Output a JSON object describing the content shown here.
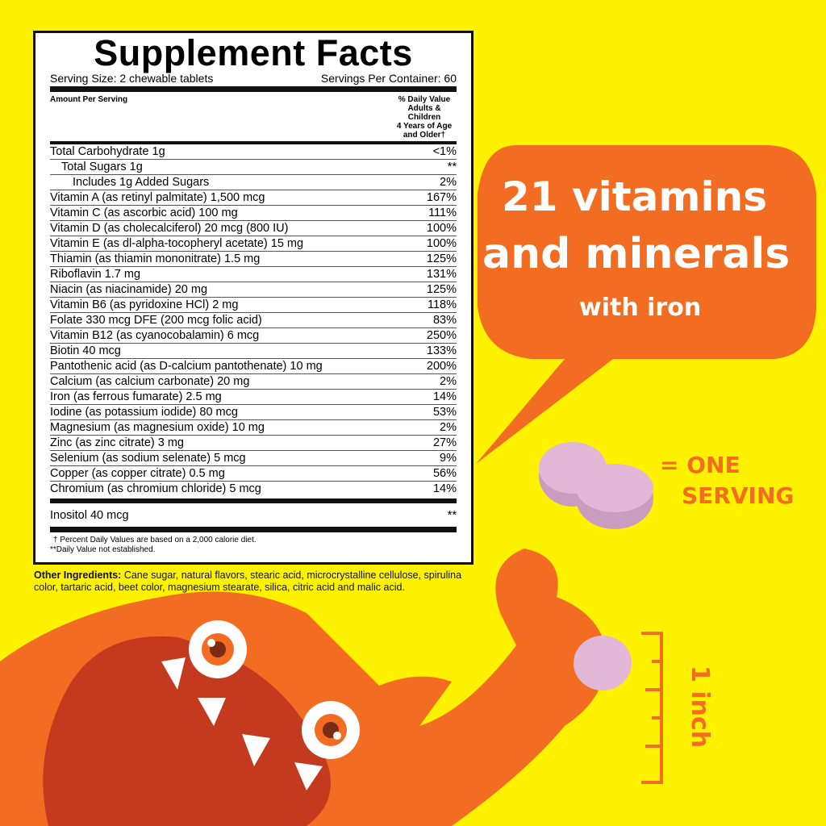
{
  "label": {
    "title": "Supplement Facts",
    "serving_size": "Serving Size: 2 chewable tablets",
    "servings_per_container": "Servings Per Container: 60",
    "amount_header": "Amount Per Serving",
    "dv_header": [
      "% Daily Value",
      "Adults & Children",
      "4 Years of Age",
      "and Older†"
    ],
    "rows": [
      {
        "name": "Total Carbohydrate 1g",
        "dv": "<1%",
        "indent": 0
      },
      {
        "name": "Total Sugars 1g",
        "dv": "**",
        "indent": 1
      },
      {
        "name": "Includes 1g Added Sugars",
        "dv": "2%",
        "indent": 2
      },
      {
        "name": "Vitamin A (as retinyl palmitate) 1,500 mcg",
        "dv": "167%",
        "indent": 0
      },
      {
        "name": "Vitamin C (as ascorbic acid) 100 mg",
        "dv": "111%",
        "indent": 0
      },
      {
        "name": "Vitamin D (as cholecalciferol) 20 mcg (800 IU)",
        "dv": "100%",
        "indent": 0
      },
      {
        "name": "Vitamin E (as dl-alpha-tocopheryl acetate) 15 mg",
        "dv": "100%",
        "indent": 0
      },
      {
        "name": "Thiamin (as thiamin mononitrate) 1.5 mg",
        "dv": "125%",
        "indent": 0
      },
      {
        "name": "Riboflavin 1.7 mg",
        "dv": "131%",
        "indent": 0
      },
      {
        "name": "Niacin (as niacinamide) 20 mg",
        "dv": "125%",
        "indent": 0
      },
      {
        "name": "Vitamin B6 (as pyridoxine HCl) 2 mg",
        "dv": "118%",
        "indent": 0
      },
      {
        "name": "Folate 330 mcg DFE (200 mcg folic acid)",
        "dv": "83%",
        "indent": 0
      },
      {
        "name": "Vitamin B12 (as cyanocobalamin) 6 mcg",
        "dv": "250%",
        "indent": 0
      },
      {
        "name": "Biotin 40 mcg",
        "dv": "133%",
        "indent": 0
      },
      {
        "name": "Pantothenic acid (as D-calcium pantothenate) 10 mg",
        "dv": "200%",
        "indent": 0
      },
      {
        "name": "Calcium (as calcium carbonate) 20 mg",
        "dv": "2%",
        "indent": 0
      },
      {
        "name": "Iron (as ferrous fumarate) 2.5 mg",
        "dv": "14%",
        "indent": 0
      },
      {
        "name": "Iodine (as potassium iodide) 80 mcg",
        "dv": "53%",
        "indent": 0
      },
      {
        "name": "Magnesium (as magnesium oxide) 10 mg",
        "dv": "2%",
        "indent": 0
      },
      {
        "name": "Zinc (as zinc citrate) 3 mg",
        "dv": "27%",
        "indent": 0
      },
      {
        "name": "Selenium (as sodium selenate) 5 mcg",
        "dv": "9%",
        "indent": 0
      },
      {
        "name": "Copper (as copper citrate) 0.5 mg",
        "dv": "56%",
        "indent": 0
      },
      {
        "name": "Chromium (as chromium chloride) 5 mcg",
        "dv": "14%",
        "indent": 0
      }
    ],
    "extra": {
      "name": "Inositol 40 mcg",
      "dv": "**"
    },
    "footnote1": "† Percent Daily Values are based on a 2,000 calorie diet.",
    "footnote2": "**Daily Value not established."
  },
  "ingredients": {
    "label": "Other Ingredients:",
    "text": " Cane sugar, natural flavors, stearic acid, microcrystalline cellulose, spirulina color, tartaric acid, beet color, magnesium stearate, silica, citric acid and malic acid."
  },
  "bubble": {
    "line1": "21 vitamins",
    "line2": "and minerals",
    "line3": "with iron"
  },
  "serving": {
    "line1": "= ONE",
    "line2": "SERVING"
  },
  "size": "1 inch",
  "colors": {
    "background": "#fff200",
    "orange": "#f26c21",
    "tablet": "#e2b7d8"
  }
}
